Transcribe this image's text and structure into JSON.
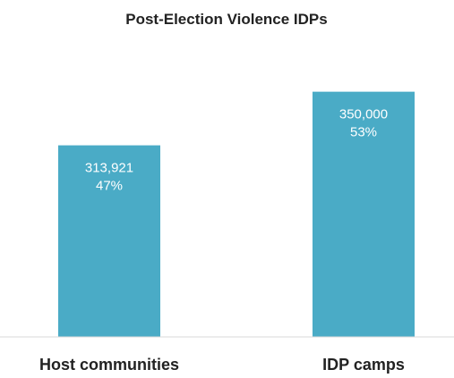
{
  "chart_data": {
    "type": "bar",
    "title": "Post-Election Violence IDPs",
    "xlabel": "",
    "ylabel": "",
    "categories": [
      "Host communities",
      "IDP camps"
    ],
    "values": [
      313921,
      350000
    ],
    "value_labels": [
      "313,921",
      "350,000"
    ],
    "percent_labels": [
      "47%",
      "53%"
    ],
    "ylim": [
      185000,
      360000
    ],
    "grid": false,
    "legend": "none",
    "colors": {
      "bar": "#4aabc6",
      "baseline": "#d9d9d9",
      "text": "#222222"
    }
  }
}
